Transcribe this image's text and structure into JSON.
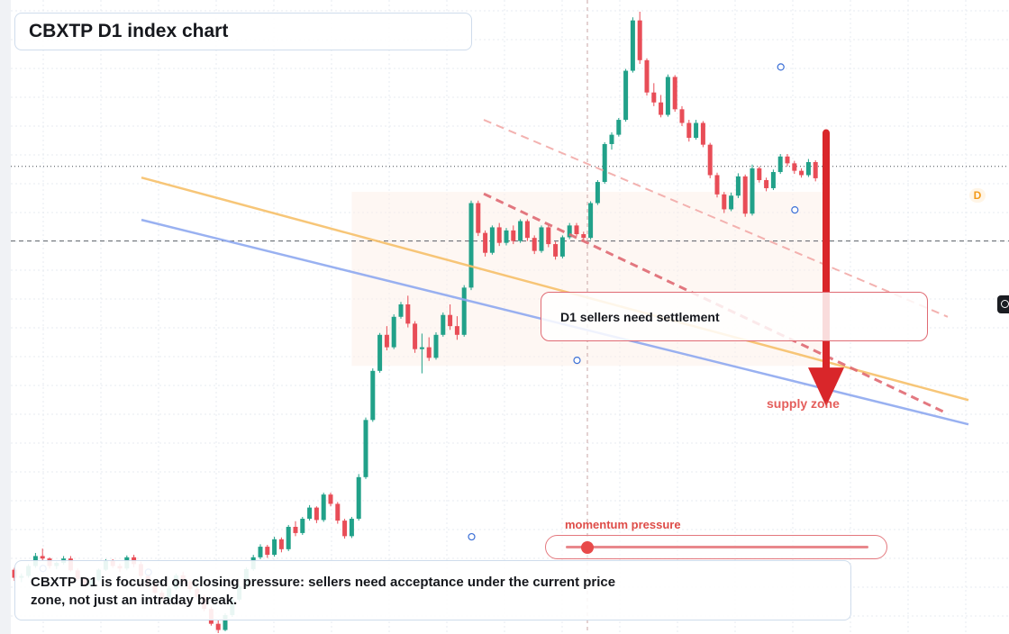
{
  "title": "CBXTP D1 index chart",
  "callout": "D1 sellers need settlement",
  "supply_label": "supply zone",
  "momentum": {
    "label": "momentum pressure",
    "level": 0.07
  },
  "note": "CBXTP D1 is focused on closing pressure: sellers need acceptance under the current price zone, not just an intraday break.",
  "badge": "D",
  "colors": {
    "up": "#21a189",
    "down": "#e84d57",
    "orange": "#f7c06a",
    "blue": "#8fa9f0",
    "arrow": "#d9262a"
  },
  "chart_data": {
    "type": "candlestick",
    "timeframe": "D1",
    "ylim": [
      0,
      100
    ],
    "candles": [
      [
        10.2,
        10.5,
        8.4,
        8.9
      ],
      [
        8.9,
        9.6,
        8.2,
        9.2
      ],
      [
        9.2,
        11.1,
        8.9,
        10.8
      ],
      [
        10.8,
        12.9,
        10.5,
        12.4
      ],
      [
        12.4,
        13.6,
        11.6,
        12.0
      ],
      [
        12.0,
        12.2,
        10.4,
        10.8
      ],
      [
        10.8,
        11.5,
        10.3,
        11.3
      ],
      [
        11.3,
        12.4,
        11.0,
        12.0
      ],
      [
        12.0,
        12.4,
        9.9,
        10.1
      ],
      [
        10.1,
        10.4,
        8.4,
        8.7
      ],
      [
        8.7,
        9.2,
        7.4,
        7.6
      ],
      [
        7.6,
        8.7,
        7.4,
        8.5
      ],
      [
        8.5,
        10.4,
        8.3,
        10.2
      ],
      [
        10.2,
        11.9,
        10.0,
        11.6
      ],
      [
        11.6,
        11.9,
        10.5,
        10.8
      ],
      [
        10.8,
        11.2,
        9.8,
        10.4
      ],
      [
        10.4,
        12.5,
        10.1,
        12.2
      ],
      [
        12.2,
        12.6,
        10.6,
        11.1
      ],
      [
        11.1,
        11.5,
        8.8,
        9.2
      ],
      [
        9.2,
        9.4,
        7.3,
        7.9
      ],
      [
        7.9,
        8.5,
        6.2,
        6.5
      ],
      [
        6.5,
        6.9,
        4.9,
        5.5
      ],
      [
        5.5,
        7.6,
        5.2,
        7.2
      ],
      [
        7.2,
        9.6,
        6.9,
        9.3
      ],
      [
        9.3,
        9.9,
        7.8,
        8.3
      ],
      [
        8.3,
        8.7,
        6.6,
        7.1
      ],
      [
        7.1,
        7.4,
        5.4,
        5.8
      ],
      [
        5.8,
        6.2,
        3.5,
        3.9
      ],
      [
        3.9,
        4.3,
        1.2,
        1.5
      ],
      [
        1.5,
        2.1,
        0.0,
        0.5
      ],
      [
        0.5,
        3.2,
        0.3,
        2.9
      ],
      [
        2.9,
        5.8,
        2.6,
        5.4
      ],
      [
        5.4,
        7.9,
        5.1,
        7.5
      ],
      [
        7.5,
        10.6,
        7.2,
        10.3
      ],
      [
        10.3,
        12.6,
        10.0,
        12.2
      ],
      [
        12.2,
        14.3,
        11.9,
        13.9
      ],
      [
        13.9,
        14.2,
        12.1,
        12.6
      ],
      [
        12.6,
        15.5,
        12.3,
        15.1
      ],
      [
        15.1,
        15.4,
        13.0,
        13.5
      ],
      [
        13.5,
        17.4,
        13.2,
        17.1
      ],
      [
        17.1,
        18.0,
        15.6,
        16.1
      ],
      [
        16.1,
        18.7,
        15.8,
        18.4
      ],
      [
        18.4,
        20.6,
        18.1,
        20.2
      ],
      [
        20.2,
        20.4,
        17.7,
        18.2
      ],
      [
        18.2,
        22.6,
        17.9,
        22.3
      ],
      [
        22.3,
        22.6,
        20.4,
        20.8
      ],
      [
        20.8,
        21.1,
        17.6,
        18.1
      ],
      [
        18.1,
        18.4,
        15.2,
        15.6
      ],
      [
        15.6,
        18.7,
        15.3,
        18.4
      ],
      [
        18.4,
        25.6,
        18.1,
        25.1
      ],
      [
        25.1,
        34.7,
        24.8,
        34.3
      ],
      [
        34.3,
        42.6,
        34.0,
        42.2
      ],
      [
        42.2,
        48.3,
        41.9,
        48.0
      ],
      [
        48.0,
        49.4,
        45.5,
        46.0
      ],
      [
        46.0,
        51.3,
        45.7,
        50.9
      ],
      [
        50.9,
        53.3,
        50.6,
        52.9
      ],
      [
        52.9,
        54.3,
        49.2,
        49.8
      ],
      [
        49.8,
        50.2,
        45.1,
        45.7
      ],
      [
        45.7,
        48.2,
        41.8,
        46.0
      ],
      [
        46.0,
        47.6,
        43.8,
        44.3
      ],
      [
        44.3,
        48.4,
        44.0,
        48.0
      ],
      [
        48.0,
        51.6,
        47.7,
        51.2
      ],
      [
        51.2,
        52.9,
        48.8,
        49.4
      ],
      [
        49.4,
        51.0,
        47.2,
        48.0
      ],
      [
        48.0,
        56.0,
        47.7,
        55.6
      ],
      [
        55.6,
        69.6,
        55.2,
        69.2
      ],
      [
        69.2,
        69.6,
        63.9,
        64.4
      ],
      [
        64.4,
        64.8,
        60.6,
        61.2
      ],
      [
        61.2,
        65.6,
        60.9,
        65.3
      ],
      [
        65.3,
        66.0,
        62.3,
        62.8
      ],
      [
        62.8,
        65.2,
        62.4,
        64.8
      ],
      [
        64.8,
        65.6,
        62.6,
        63.1
      ],
      [
        63.1,
        66.6,
        62.8,
        66.3
      ],
      [
        66.3,
        66.6,
        63.1,
        63.6
      ],
      [
        63.6,
        64.0,
        61.0,
        61.5
      ],
      [
        61.5,
        65.6,
        61.2,
        65.3
      ],
      [
        65.3,
        65.6,
        62.1,
        62.6
      ],
      [
        62.6,
        63.0,
        60.1,
        60.6
      ],
      [
        60.6,
        64.0,
        60.3,
        63.7
      ],
      [
        63.7,
        66.0,
        63.4,
        65.6
      ],
      [
        65.6,
        66.0,
        63.9,
        64.2
      ],
      [
        64.2,
        64.6,
        63.2,
        63.6
      ],
      [
        63.6,
        69.5,
        63.3,
        69.2
      ],
      [
        69.2,
        72.9,
        68.9,
        72.6
      ],
      [
        72.6,
        79.0,
        72.3,
        78.7
      ],
      [
        78.7,
        80.6,
        77.8,
        80.2
      ],
      [
        80.2,
        82.9,
        79.9,
        82.6
      ],
      [
        82.6,
        90.8,
        82.3,
        90.5
      ],
      [
        90.5,
        99.1,
        90.2,
        98.6
      ],
      [
        98.6,
        100.0,
        91.6,
        92.2
      ],
      [
        92.2,
        92.5,
        86.5,
        87.0
      ],
      [
        87.0,
        88.5,
        84.8,
        85.4
      ],
      [
        85.4,
        86.6,
        83.0,
        83.4
      ],
      [
        83.4,
        89.9,
        83.1,
        89.5
      ],
      [
        89.5,
        89.8,
        83.9,
        84.3
      ],
      [
        84.3,
        84.8,
        81.6,
        82.1
      ],
      [
        82.1,
        82.6,
        79.1,
        79.7
      ],
      [
        79.7,
        82.6,
        79.4,
        82.1
      ],
      [
        82.1,
        82.4,
        78.2,
        78.6
      ],
      [
        78.6,
        78.9,
        73.2,
        73.7
      ],
      [
        73.7,
        74.1,
        70.1,
        70.6
      ],
      [
        70.6,
        71.0,
        67.6,
        68.2
      ],
      [
        68.2,
        70.9,
        67.9,
        70.4
      ],
      [
        70.4,
        74.0,
        70.0,
        73.5
      ],
      [
        73.5,
        73.8,
        67.0,
        67.5
      ],
      [
        67.5,
        75.4,
        67.2,
        74.8
      ],
      [
        74.8,
        75.1,
        72.5,
        72.9
      ],
      [
        72.9,
        73.3,
        71.1,
        71.6
      ],
      [
        71.6,
        74.6,
        71.3,
        74.2
      ],
      [
        74.2,
        77.1,
        73.9,
        76.7
      ],
      [
        76.7,
        77.1,
        75.1,
        75.6
      ],
      [
        75.6,
        76.0,
        73.9,
        74.4
      ],
      [
        74.4,
        74.8,
        73.3,
        73.7
      ],
      [
        73.7,
        76.3,
        73.4,
        75.8
      ],
      [
        75.8,
        76.1,
        72.7,
        73.2
      ]
    ],
    "lines": [
      {
        "name": "",
        "style": "solid",
        "color": "#f7c06a",
        "from": [
          0,
          73.3
        ],
        "to": [
          115,
          37.5
        ]
      },
      {
        "name": "",
        "style": "solid",
        "color": "#8fa9f0",
        "from": [
          0,
          66.5
        ],
        "to": [
          115,
          33.6
        ]
      },
      {
        "name": "",
        "style": "dashed",
        "color": "#e06a73",
        "from": [
          50,
          70.7
        ],
        "to": [
          115,
          35.3
        ]
      },
      {
        "name": "",
        "style": "dashed",
        "color": "#f2aaa8",
        "from": [
          50,
          82.6
        ],
        "to": [
          115,
          50.9
        ]
      }
    ],
    "zone": {
      "label": "supply zone",
      "ylim": [
        43,
        71
      ],
      "x": [
        48,
        115
      ]
    },
    "arrow": {
      "from": 80.5,
      "to": 36.5
    },
    "reference_levels": [
      75.1,
      63.1
    ]
  }
}
